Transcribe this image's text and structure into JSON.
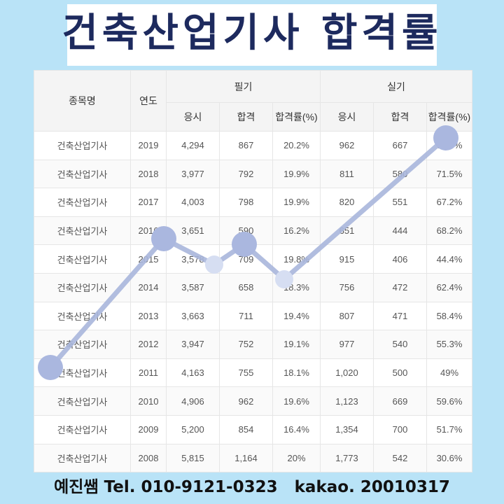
{
  "title": "건축산업기사 합격률",
  "table": {
    "headers": {
      "name": "종목명",
      "year": "연도",
      "written": "필기",
      "practical": "실기",
      "applicants": "응시",
      "passed": "합격",
      "rate": "합격률(%)"
    },
    "rows": [
      {
        "name": "건축산업기사",
        "year": "2019",
        "w_apply": "4,294",
        "w_pass": "867",
        "w_rate": "20.2%",
        "p_apply": "962",
        "p_pass": "667",
        "p_rate": "69.3%"
      },
      {
        "name": "건축산업기사",
        "year": "2018",
        "w_apply": "3,977",
        "w_pass": "792",
        "w_rate": "19.9%",
        "p_apply": "811",
        "p_pass": "580",
        "p_rate": "71.5%"
      },
      {
        "name": "건축산업기사",
        "year": "2017",
        "w_apply": "4,003",
        "w_pass": "798",
        "w_rate": "19.9%",
        "p_apply": "820",
        "p_pass": "551",
        "p_rate": "67.2%"
      },
      {
        "name": "건축산업기사",
        "year": "2016",
        "w_apply": "3,651",
        "w_pass": "590",
        "w_rate": "16.2%",
        "p_apply": "651",
        "p_pass": "444",
        "p_rate": "68.2%"
      },
      {
        "name": "건축산업기사",
        "year": "2015",
        "w_apply": "3,578",
        "w_pass": "709",
        "w_rate": "19.8%",
        "p_apply": "915",
        "p_pass": "406",
        "p_rate": "44.4%"
      },
      {
        "name": "건축산업기사",
        "year": "2014",
        "w_apply": "3,587",
        "w_pass": "658",
        "w_rate": "18.3%",
        "p_apply": "756",
        "p_pass": "472",
        "p_rate": "62.4%"
      },
      {
        "name": "건축산업기사",
        "year": "2013",
        "w_apply": "3,663",
        "w_pass": "711",
        "w_rate": "19.4%",
        "p_apply": "807",
        "p_pass": "471",
        "p_rate": "58.4%"
      },
      {
        "name": "건축산업기사",
        "year": "2012",
        "w_apply": "3,947",
        "w_pass": "752",
        "w_rate": "19.1%",
        "p_apply": "977",
        "p_pass": "540",
        "p_rate": "55.3%"
      },
      {
        "name": "건축산업기사",
        "year": "2011",
        "w_apply": "4,163",
        "w_pass": "755",
        "w_rate": "18.1%",
        "p_apply": "1,020",
        "p_pass": "500",
        "p_rate": "49%"
      },
      {
        "name": "건축산업기사",
        "year": "2010",
        "w_apply": "4,906",
        "w_pass": "962",
        "w_rate": "19.6%",
        "p_apply": "1,123",
        "p_pass": "669",
        "p_rate": "59.6%"
      },
      {
        "name": "건축산업기사",
        "year": "2009",
        "w_apply": "5,200",
        "w_pass": "854",
        "w_rate": "16.4%",
        "p_apply": "1,354",
        "p_pass": "700",
        "p_rate": "51.7%"
      },
      {
        "name": "건축산업기사",
        "year": "2008",
        "w_apply": "5,815",
        "w_pass": "1,164",
        "w_rate": "20%",
        "p_apply": "1,773",
        "p_pass": "542",
        "p_rate": "30.6%"
      }
    ]
  },
  "decoration": {
    "line_color": "#a9b6dc",
    "dot_large_color": "#aab7df",
    "dot_small_color": "#d6def2"
  },
  "footer": {
    "text": "예진쌤 Tel. 010-9121-0323   kakao. 20010317"
  }
}
